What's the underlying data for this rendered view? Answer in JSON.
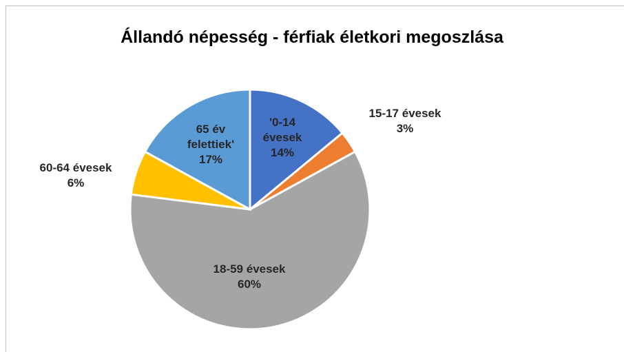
{
  "chart_data": {
    "type": "pie",
    "title": "Állandó népesség - férfiak életkori megoszlása",
    "categories": [
      "'0-14 évesek",
      "15-17 évesek",
      "18-59 évesek",
      "60-64 évesek",
      "65 év felettiek'"
    ],
    "values": [
      14,
      3,
      60,
      6,
      17
    ],
    "value_labels": [
      "14%",
      "3%",
      "60%",
      "6%",
      "17%"
    ],
    "colors": [
      "#4472c4",
      "#ed7d31",
      "#a5a5a5",
      "#ffc000",
      "#5b9bd5"
    ]
  }
}
